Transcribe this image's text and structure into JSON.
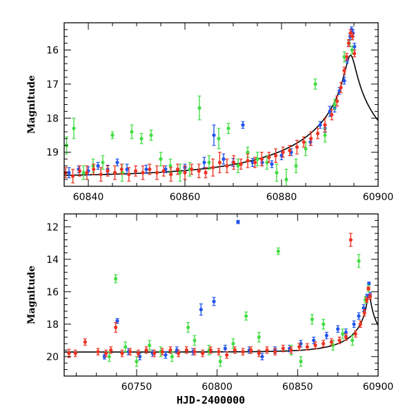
{
  "chart_data": [
    {
      "type": "scatter",
      "title": "",
      "xlabel": "",
      "ylabel": "Magnitude",
      "xlim": [
        60835,
        60900
      ],
      "ylim": [
        15.2,
        20.0
      ],
      "y_inverted": true,
      "xticks": [
        60840,
        60860,
        60880,
        60900
      ],
      "yticks": [
        16,
        17,
        18,
        19
      ],
      "model_curve": {
        "type": "line",
        "color": "#000000",
        "base_mag": 19.72,
        "peak_mag": 15.55,
        "t0": 60894.3,
        "u0": 0.0375,
        "tE": 26
      },
      "series": [
        {
          "color": "#2255ee",
          "x": [
            60836,
            60838,
            60840,
            60842,
            60844,
            60846,
            60848,
            60852,
            60856,
            60860,
            60864,
            60866,
            60868,
            60870,
            60872,
            60874,
            60876,
            60878,
            60880,
            60882,
            60886,
            60888,
            60889,
            60890,
            60891,
            60892,
            60893,
            60893.6,
            60894,
            60894.2,
            60894.5,
            60894.8,
            60895.1
          ],
          "y": [
            19.6,
            19.5,
            19.55,
            19.4,
            19.5,
            19.3,
            19.5,
            19.5,
            19.5,
            19.45,
            19.3,
            18.5,
            19.2,
            19.3,
            18.2,
            19.3,
            19.3,
            19.35,
            19.1,
            19.0,
            18.7,
            18.2,
            18.3,
            17.8,
            17.7,
            17.2,
            16.9,
            16.3,
            15.8,
            15.6,
            15.4,
            15.5,
            15.9
          ],
          "yerr": [
            0.15,
            0.1,
            0.12,
            0.1,
            0.12,
            0.1,
            0.15,
            0.12,
            0.1,
            0.1,
            0.15,
            0.3,
            0.15,
            0.12,
            0.1,
            0.12,
            0.1,
            0.1,
            0.12,
            0.1,
            0.1,
            0.1,
            0.12,
            0.15,
            0.12,
            0.1,
            0.1,
            0.08,
            0.08,
            0.08,
            0.08,
            0.1,
            0.1
          ]
        },
        {
          "color": "#44dd44",
          "x": [
            60835.5,
            60837,
            60839,
            60841,
            60843,
            60845,
            60847,
            60849,
            60851,
            60853,
            60855,
            60857,
            60859,
            60861,
            60863,
            60865,
            60867,
            60869,
            60871,
            60873,
            60875,
            60877,
            60879,
            60881,
            60883,
            60885,
            60887,
            60889,
            60891,
            60893,
            60894,
            60894.6
          ],
          "y": [
            18.8,
            18.3,
            19.6,
            19.4,
            19.3,
            18.5,
            19.6,
            18.4,
            18.6,
            18.5,
            19.2,
            19.4,
            19.6,
            19.5,
            17.7,
            19.3,
            18.6,
            18.3,
            19.4,
            19.0,
            19.2,
            19.3,
            19.6,
            19.8,
            19.4,
            18.9,
            17.0,
            18.5,
            17.6,
            16.2,
            15.8,
            16.0
          ],
          "yerr": [
            0.25,
            0.3,
            0.2,
            0.2,
            0.2,
            0.1,
            0.25,
            0.2,
            0.15,
            0.15,
            0.2,
            0.2,
            0.25,
            0.2,
            0.35,
            0.2,
            0.3,
            0.15,
            0.2,
            0.15,
            0.2,
            0.2,
            0.25,
            0.3,
            0.2,
            0.2,
            0.15,
            0.2,
            0.15,
            0.15,
            0.1,
            0.12
          ]
        },
        {
          "color": "#ee3322",
          "x": [
            60835.3,
            60836.8,
            60838.2,
            60839.7,
            60841.1,
            60842.6,
            60844,
            60845.5,
            60846.9,
            60848.4,
            60849.8,
            60851.3,
            60852.7,
            60854.2,
            60855.6,
            60857.1,
            60858.5,
            60860,
            60861.4,
            60862.9,
            60864.3,
            60865.8,
            60867.2,
            60868.7,
            60870.1,
            60871.6,
            60873,
            60874.5,
            60875.9,
            60877.4,
            60878.8,
            60880.3,
            60881.7,
            60883.2,
            60884.6,
            60886.1,
            60887.5,
            60889,
            60890.4,
            60891.5,
            60892.3,
            60893,
            60893.5,
            60893.9,
            60894.3,
            60894.7,
            60895.1
          ],
          "y": [
            19.6,
            19.7,
            19.55,
            19.6,
            19.5,
            19.65,
            19.55,
            19.6,
            19.5,
            19.65,
            19.55,
            19.6,
            19.5,
            19.6,
            19.55,
            19.65,
            19.5,
            19.6,
            19.5,
            19.55,
            19.6,
            19.45,
            19.3,
            19.4,
            19.3,
            19.35,
            19.25,
            19.3,
            19.2,
            19.15,
            19.1,
            19.0,
            18.95,
            18.85,
            18.7,
            18.6,
            18.45,
            18.2,
            17.9,
            17.5,
            17.1,
            16.6,
            16.2,
            15.8,
            15.5,
            15.6,
            16.1
          ],
          "yerr": [
            0.15,
            0.2,
            0.15,
            0.2,
            0.15,
            0.2,
            0.15,
            0.2,
            0.15,
            0.2,
            0.15,
            0.2,
            0.15,
            0.2,
            0.15,
            0.2,
            0.15,
            0.2,
            0.15,
            0.2,
            0.15,
            0.25,
            0.3,
            0.2,
            0.2,
            0.15,
            0.2,
            0.15,
            0.2,
            0.15,
            0.2,
            0.15,
            0.15,
            0.2,
            0.15,
            0.2,
            0.15,
            0.2,
            0.15,
            0.15,
            0.15,
            0.1,
            0.1,
            0.1,
            0.1,
            0.1,
            0.1
          ]
        }
      ]
    },
    {
      "type": "scatter",
      "title": "",
      "xlabel": "HJD-2400000",
      "ylabel": "Magnitude",
      "xlim": [
        60705,
        60900
      ],
      "ylim": [
        11.2,
        21.2
      ],
      "y_inverted": true,
      "xticks": [
        60750,
        60800,
        60850,
        60900
      ],
      "yticks": [
        12,
        14,
        16,
        18,
        20
      ],
      "model_curve": {
        "type": "line",
        "color": "#000000",
        "base_mag": 19.72,
        "peak_mag": 15.55,
        "t0": 60894.3,
        "u0": 0.0375,
        "tE": 26
      },
      "series": [
        {
          "color": "#2255ee",
          "x": [
            60730,
            60738,
            60745,
            60752,
            60760,
            60768,
            60775,
            60785,
            60790,
            60798,
            60805,
            60813,
            60820,
            60828,
            60836,
            60845,
            60852,
            60860,
            60868,
            60875,
            60880,
            60885,
            60888,
            60891,
            60893,
            60894.3,
            60895
          ],
          "y": [
            20.0,
            17.8,
            19.7,
            20.0,
            19.8,
            19.9,
            19.6,
            19.7,
            17.1,
            16.6,
            19.5,
            11.7,
            19.6,
            20.0,
            19.6,
            19.5,
            19.2,
            19.0,
            18.7,
            18.3,
            18.5,
            18.0,
            17.5,
            17.0,
            16.3,
            15.5,
            16.2
          ],
          "yerr": [
            0.15,
            0.15,
            0.2,
            0.2,
            0.2,
            0.2,
            0.2,
            0.2,
            0.35,
            0.25,
            0.2,
            0.1,
            0.2,
            0.2,
            0.2,
            0.2,
            0.2,
            0.2,
            0.2,
            0.2,
            0.2,
            0.2,
            0.2,
            0.2,
            0.15,
            0.1,
            0.15
          ]
        },
        {
          "color": "#44dd44",
          "x": [
            60733,
            60737,
            60743,
            60750,
            60758,
            60765,
            60772,
            60782,
            60786,
            60795,
            60802,
            60810,
            60818,
            60826,
            60838,
            60846,
            60852,
            60859,
            60866,
            60872,
            60878,
            60884,
            60888,
            60892,
            60894
          ],
          "y": [
            20.0,
            15.2,
            19.4,
            20.3,
            19.3,
            19.7,
            20.0,
            18.2,
            19.0,
            19.6,
            20.3,
            19.2,
            17.5,
            18.8,
            13.5,
            19.6,
            20.3,
            17.7,
            18.0,
            19.3,
            18.6,
            19.0,
            14.1,
            16.5,
            15.8
          ],
          "yerr": [
            0.3,
            0.25,
            0.3,
            0.3,
            0.3,
            0.3,
            0.3,
            0.3,
            0.3,
            0.3,
            0.3,
            0.3,
            0.25,
            0.3,
            0.2,
            0.3,
            0.3,
            0.3,
            0.3,
            0.3,
            0.3,
            0.3,
            0.4,
            0.2,
            0.2
          ]
        },
        {
          "color": "#ee3322",
          "x": [
            60708,
            60712,
            60718,
            60726,
            60731,
            60734,
            60737,
            60741,
            60746,
            60751,
            60756,
            60761,
            60766,
            60771,
            60776,
            60781,
            60786,
            60791,
            60796,
            60801,
            60806,
            60811,
            60816,
            60821,
            60826,
            60831,
            60836,
            60841,
            60846,
            60851,
            60856,
            60861,
            60866,
            60871,
            60876,
            60880,
            60883,
            60886,
            60889,
            60891.5,
            60893,
            60894,
            60895
          ],
          "y": [
            19.8,
            19.8,
            19.1,
            19.7,
            19.8,
            19.6,
            18.2,
            19.8,
            19.7,
            19.8,
            19.6,
            19.8,
            19.7,
            19.6,
            19.8,
            19.6,
            19.7,
            19.8,
            19.6,
            19.7,
            19.9,
            19.6,
            19.7,
            19.6,
            19.8,
            19.6,
            19.7,
            19.5,
            19.6,
            19.4,
            19.4,
            19.3,
            19.2,
            19.1,
            19.0,
            18.8,
            12.8,
            18.6,
            18.0,
            17.3,
            16.5,
            15.8,
            16.3
          ],
          "yerr": [
            0.25,
            0.2,
            0.2,
            0.2,
            0.2,
            0.2,
            0.3,
            0.2,
            0.2,
            0.2,
            0.2,
            0.2,
            0.2,
            0.2,
            0.2,
            0.2,
            0.2,
            0.2,
            0.2,
            0.2,
            0.2,
            0.2,
            0.2,
            0.2,
            0.2,
            0.2,
            0.2,
            0.2,
            0.2,
            0.2,
            0.2,
            0.2,
            0.2,
            0.2,
            0.2,
            0.2,
            0.4,
            0.2,
            0.2,
            0.2,
            0.15,
            0.1,
            0.15
          ]
        }
      ]
    }
  ]
}
